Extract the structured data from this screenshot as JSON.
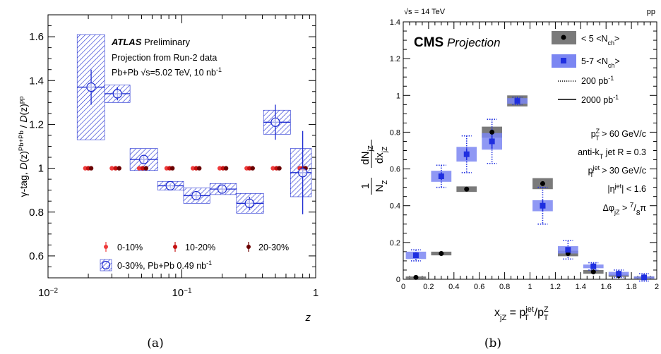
{
  "panel_labels": [
    "(a)",
    "(b)"
  ],
  "chart_data": [
    {
      "type": "scatter",
      "title": "",
      "ylabel": "γ-tag, D(z)^{Pb+Pb} / D(z)^{pp}",
      "xlabel": "z",
      "xscale": "log",
      "xlim": [
        0.01,
        1
      ],
      "ylim": [
        0.5,
        1.7
      ],
      "x_ticks": [
        "10^{-2}",
        "10^{-1}",
        "1"
      ],
      "y_ticks": [
        "0.6",
        "0.8",
        "1",
        "1.2",
        "1.4",
        "1.6"
      ],
      "annotations": [
        "ATLAS Preliminary",
        "Projection from Run-2 data",
        "Pb+Pb √s=5.02 TeV, 10 nb^{-1}"
      ],
      "legend_placement": "bottom-left",
      "colors": {
        "c0_10": "#ee3a3a",
        "c10_20": "#c41010",
        "c20_30": "#6b0000",
        "proj": "#1d2bd1"
      },
      "series": [
        {
          "name": "0-10%",
          "x": [
            0.019,
            0.03,
            0.048,
            0.077,
            0.121,
            0.192,
            0.305,
            0.48,
            0.76
          ],
          "y": [
            1,
            1,
            1,
            1,
            1,
            1,
            1,
            1,
            1
          ]
        },
        {
          "name": "10-20%",
          "x": [
            0.02,
            0.032,
            0.051,
            0.081,
            0.128,
            0.203,
            0.32,
            0.51,
            0.8
          ],
          "y": [
            1,
            1,
            1,
            1,
            1,
            1,
            1,
            1,
            1
          ]
        },
        {
          "name": "20-30%",
          "x": [
            0.021,
            0.034,
            0.054,
            0.085,
            0.135,
            0.214,
            0.338,
            0.535,
            0.84
          ],
          "y": [
            1,
            1,
            1,
            1,
            1,
            1,
            1,
            1,
            1
          ]
        },
        {
          "name": "0-30%, Pb+Pb 0.49 nb^{-1}",
          "x": [
            0.021,
            0.033,
            0.052,
            0.082,
            0.128,
            0.2,
            0.32,
            0.5,
            0.8
          ],
          "y": [
            1.37,
            1.34,
            1.04,
            0.92,
            0.875,
            0.905,
            0.84,
            1.21,
            0.98
          ],
          "stat_err": [
            0.08,
            0.03,
            0.02,
            0.01,
            0.02,
            0.02,
            0.03,
            0.08,
            0.19
          ],
          "syst_err": [
            0.24,
            0.04,
            0.05,
            0.02,
            0.035,
            0.025,
            0.045,
            0.055,
            0.11
          ],
          "x_lo": [
            0.0165,
            0.0265,
            0.041,
            0.066,
            0.103,
            0.162,
            0.256,
            0.408,
            0.648
          ],
          "x_hi": [
            0.0265,
            0.041,
            0.066,
            0.103,
            0.162,
            0.256,
            0.408,
            0.648,
            0.93
          ]
        }
      ],
      "legend": [
        "0-10%",
        "10-20%",
        "20-30%",
        "0-30%, Pb+Pb 0.49 nb^{-1}"
      ]
    },
    {
      "type": "scatter",
      "title": "CMS Projection",
      "header_left": "√s = 14 TeV",
      "header_right": "pp",
      "ylabel": "1/N_Z dN_jZ/dx_jZ",
      "xlabel": "x_jZ = p_T^jet/p_T^Z",
      "xlim": [
        0,
        2
      ],
      "ylim": [
        0,
        1.4
      ],
      "x_ticks": [
        "0",
        "0.2",
        "0.4",
        "0.6",
        "0.8",
        "1",
        "1.2",
        "1.4",
        "1.6",
        "1.8",
        "2"
      ],
      "y_ticks": [
        "0",
        "0.2",
        "0.4",
        "0.6",
        "0.8",
        "1",
        "1.2",
        "1.4"
      ],
      "legend_placement": "top-right",
      "cuts": [
        "p_T^Z > 60 GeV/c",
        "anti-k_T jet R = 0.3",
        "p_T^jet > 30 GeV/c",
        "|η^jet| < 1.6",
        "Δφ_jZ > 7/8 π"
      ],
      "colors": {
        "low_box": "#7a7a7a",
        "high_box": "#7b86f2",
        "high_marker": "#1f2fe0"
      },
      "series": [
        {
          "name": "< 5 <N_ch>",
          "x": [
            0.1,
            0.3,
            0.5,
            0.7,
            0.9,
            1.1,
            1.3,
            1.5,
            1.7,
            1.9
          ],
          "y": [
            0.01,
            0.14,
            0.49,
            0.8,
            0.97,
            0.52,
            0.14,
            0.04,
            0.02,
            0.01
          ],
          "syst_err": [
            0.005,
            0.01,
            0.015,
            0.03,
            0.03,
            0.03,
            0.015,
            0.01,
            0.005,
            0.005
          ]
        },
        {
          "name": "5-7 <N_ch>",
          "x": [
            0.1,
            0.3,
            0.5,
            0.7,
            0.9,
            1.1,
            1.3,
            1.5,
            1.7,
            1.9
          ],
          "y": [
            0.13,
            0.56,
            0.68,
            0.75,
            0.97,
            0.4,
            0.16,
            0.07,
            0.03,
            0.01
          ],
          "syst_err": [
            0.02,
            0.03,
            0.04,
            0.045,
            0.015,
            0.03,
            0.02,
            0.01,
            0.01,
            0.005
          ],
          "stat_err_200pb": [
            0.03,
            0.06,
            0.1,
            0.12,
            0.02,
            0.1,
            0.05,
            0.02,
            0.02,
            0.02
          ],
          "stat_err_2000pb": [
            0.01,
            0.02,
            0.03,
            0.04,
            0.01,
            0.03,
            0.015,
            0.01,
            0.01,
            0.005
          ]
        }
      ],
      "legend": [
        "< 5 <N_ch>",
        "5-7 <N_ch>",
        "200 pb^{-1}",
        "2000 pb^{-1}"
      ]
    }
  ]
}
